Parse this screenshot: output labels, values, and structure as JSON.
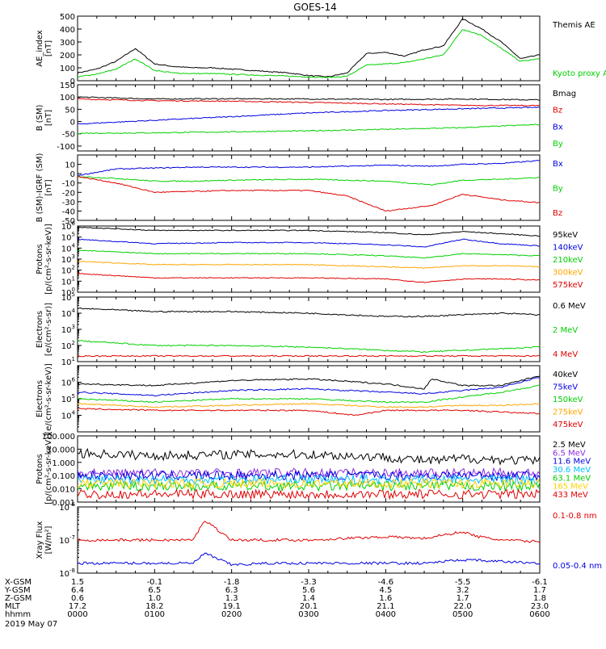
{
  "title": "GOES-14",
  "chart_data": [
    {
      "type": "line",
      "ylabel_lines": [
        "AE_index",
        "[nT]"
      ],
      "ylim": [
        0,
        500
      ],
      "yticks": [
        "0",
        "100",
        "200",
        "300",
        "400",
        "500"
      ],
      "series": [
        {
          "name": "Themis AE",
          "color": "#000000",
          "x": [
            0,
            0.25,
            0.5,
            0.75,
            1.0,
            1.25,
            1.5,
            1.75,
            2.0,
            2.25,
            2.5,
            2.75,
            3.0,
            3.25,
            3.5,
            3.75,
            4.0,
            4.25,
            4.5,
            4.75,
            5.0,
            5.25,
            5.5,
            5.75,
            6.0
          ],
          "values": [
            60,
            90,
            150,
            250,
            130,
            110,
            100,
            100,
            90,
            80,
            70,
            60,
            40,
            30,
            60,
            210,
            220,
            190,
            240,
            270,
            480,
            400,
            300,
            170,
            200
          ]
        },
        {
          "name": "Kyoto proxy AE",
          "color": "#00d000",
          "x": [
            0,
            0.25,
            0.5,
            0.75,
            1.0,
            1.25,
            1.5,
            1.75,
            2.0,
            2.25,
            2.5,
            2.75,
            3.0,
            3.25,
            3.5,
            3.75,
            4.0,
            4.25,
            4.5,
            4.75,
            5.0,
            5.25,
            5.5,
            5.75,
            6.0
          ],
          "values": [
            30,
            50,
            90,
            170,
            80,
            60,
            55,
            55,
            50,
            45,
            40,
            35,
            30,
            25,
            35,
            120,
            130,
            140,
            170,
            200,
            400,
            350,
            250,
            150,
            170
          ]
        }
      ]
    },
    {
      "type": "line",
      "ylabel_lines": [
        "B (SM)",
        "[nT]"
      ],
      "ylim": [
        -120,
        150
      ],
      "yticks": [
        "-100",
        "-50",
        "0",
        "50",
        "100",
        "150"
      ],
      "series": [
        {
          "name": "Bmag",
          "color": "#000000",
          "x": [
            0,
            1,
            2,
            3,
            4,
            5,
            6
          ],
          "values": [
            100,
            92,
            93,
            92,
            90,
            92,
            88
          ]
        },
        {
          "name": "Bz",
          "color": "#e00000",
          "x": [
            0,
            1,
            2,
            3,
            4,
            5,
            6
          ],
          "values": [
            92,
            85,
            83,
            78,
            72,
            66,
            65
          ]
        },
        {
          "name": "Bx",
          "color": "#0000e0",
          "x": [
            0,
            1,
            2,
            3,
            4,
            5,
            6
          ],
          "values": [
            -10,
            5,
            20,
            35,
            45,
            52,
            58
          ]
        },
        {
          "name": "By",
          "color": "#00d000",
          "x": [
            0,
            1,
            2,
            3,
            4,
            5,
            6
          ],
          "values": [
            -48,
            -46,
            -42,
            -38,
            -32,
            -25,
            -12
          ]
        }
      ]
    },
    {
      "type": "line",
      "ylabel_lines": [
        "B (SM)-IGRF (SM)",
        "[nT]"
      ],
      "ylim": [
        -50,
        20
      ],
      "yticks": [
        "-50",
        "-40",
        "-30",
        "-20",
        "-10",
        "0",
        "10"
      ],
      "series": [
        {
          "name": "Bx",
          "color": "#0000e0",
          "x": [
            0,
            0.5,
            1.0,
            1.5,
            2.0,
            3.0,
            4.0,
            4.6,
            5.0,
            5.5,
            6.0
          ],
          "values": [
            -2,
            5,
            6,
            7,
            7,
            7,
            9,
            8,
            10,
            11,
            14
          ]
        },
        {
          "name": "By",
          "color": "#00d000",
          "x": [
            0,
            0.5,
            1.0,
            1.5,
            2.0,
            3.0,
            4.0,
            4.6,
            5.0,
            5.5,
            6.0
          ],
          "values": [
            -3,
            -5,
            -8,
            -8,
            -7,
            -6,
            -8,
            -12,
            -7,
            -6,
            -4
          ]
        },
        {
          "name": "Bz",
          "color": "#e00000",
          "x": [
            0,
            0.5,
            1.0,
            1.5,
            2.0,
            3.0,
            3.5,
            4.0,
            4.6,
            5.0,
            5.5,
            6.0
          ],
          "values": [
            -3,
            -10,
            -20,
            -19,
            -18,
            -18,
            -24,
            -40,
            -34,
            -22,
            -28,
            -31
          ]
        }
      ]
    },
    {
      "type": "line",
      "log": true,
      "ylabel_lines": [
        "Protons",
        "[p/(cm²-s-sr-keV)]"
      ],
      "ylim_exp": [
        0,
        6
      ],
      "yticks_exp": [
        0,
        1,
        2,
        3,
        4,
        5,
        6
      ],
      "series": [
        {
          "name": "95keV",
          "color": "#000000",
          "x": [
            0,
            1,
            2,
            3,
            4,
            4.5,
            5,
            5.5,
            6
          ],
          "values_exp": [
            5.9,
            5.6,
            5.6,
            5.6,
            5.4,
            5.2,
            5.5,
            5.3,
            5.1
          ]
        },
        {
          "name": "140keV",
          "color": "#0000e0",
          "x": [
            0,
            1,
            2,
            3,
            4,
            4.5,
            5,
            5.5,
            6
          ],
          "values_exp": [
            4.8,
            4.4,
            4.5,
            4.5,
            4.3,
            4.1,
            4.8,
            4.4,
            4.2
          ]
        },
        {
          "name": "210keV",
          "color": "#00d000",
          "x": [
            0,
            1,
            2,
            3,
            4,
            4.5,
            5,
            5.5,
            6
          ],
          "values_exp": [
            3.8,
            3.5,
            3.5,
            3.5,
            3.3,
            3.1,
            3.5,
            3.4,
            3.3
          ]
        },
        {
          "name": "300keV",
          "color": "#ffa500",
          "x": [
            0,
            1,
            2,
            3,
            4,
            4.5,
            5,
            5.5,
            6
          ],
          "values_exp": [
            2.8,
            2.5,
            2.5,
            2.5,
            2.3,
            2.2,
            2.4,
            2.4,
            2.3
          ]
        },
        {
          "name": "575keV",
          "color": "#e00000",
          "x": [
            0,
            1,
            2,
            3,
            4,
            4.5,
            5,
            5.5,
            6
          ],
          "values_exp": [
            1.7,
            1.3,
            1.3,
            1.3,
            1.2,
            0.9,
            1.2,
            1.2,
            1.1
          ]
        }
      ]
    },
    {
      "type": "line",
      "log": true,
      "ylabel_lines": [
        "Electrons",
        "[e/(cm²-s-sr)]"
      ],
      "ylim_exp": [
        1,
        5
      ],
      "yticks_exp": [
        1,
        2,
        3,
        4,
        5
      ],
      "series": [
        {
          "name": "0.6 MeV",
          "color": "#000000",
          "x": [
            0,
            1,
            2,
            3,
            4,
            4.5,
            5,
            5.5,
            6
          ],
          "values_exp": [
            4.3,
            4.1,
            4.1,
            4.0,
            3.8,
            3.8,
            3.9,
            4.0,
            3.9
          ]
        },
        {
          "name": "2 MeV",
          "color": "#00d000",
          "x": [
            0,
            1,
            2,
            3,
            4,
            4.5,
            5,
            5.5,
            6
          ],
          "values_exp": [
            2.3,
            2.0,
            2.0,
            1.9,
            1.7,
            1.6,
            1.7,
            1.8,
            1.9
          ]
        },
        {
          "name": "4 MeV",
          "color": "#e00000",
          "x": [
            0,
            1,
            2,
            3,
            4,
            4.5,
            5,
            5.5,
            6
          ],
          "values_exp": [
            1.35,
            1.35,
            1.35,
            1.35,
            1.35,
            1.35,
            1.35,
            1.35,
            1.35
          ]
        }
      ]
    },
    {
      "type": "line",
      "log": true,
      "ylabel_lines": [
        "Electrons",
        "[e/(cm²-s-sr-keV)]"
      ],
      "ylim_exp": [
        3,
        7
      ],
      "yticks_exp": [
        4,
        5,
        6
      ],
      "series": [
        {
          "name": "40keV",
          "color": "#000000",
          "x": [
            0,
            1,
            2,
            3,
            4,
            4.5,
            4.6,
            5,
            5.5,
            6
          ],
          "values_exp": [
            5.9,
            5.8,
            6.1,
            6.2,
            5.9,
            5.6,
            6.2,
            5.8,
            5.8,
            6.4
          ]
        },
        {
          "name": "75keV",
          "color": "#0000e0",
          "x": [
            0,
            1,
            2,
            3,
            4,
            4.5,
            5,
            5.5,
            6
          ],
          "values_exp": [
            5.4,
            5.2,
            5.5,
            5.6,
            5.4,
            5.3,
            5.5,
            5.7,
            6.3
          ]
        },
        {
          "name": "150keV",
          "color": "#00d000",
          "x": [
            0,
            1,
            2,
            3,
            4,
            4.5,
            5,
            5.5,
            6
          ],
          "values_exp": [
            5.0,
            4.8,
            5.0,
            5.0,
            4.8,
            4.8,
            5.1,
            5.4,
            5.8
          ]
        },
        {
          "name": "275keV",
          "color": "#ffa500",
          "x": [
            0,
            1,
            2,
            3,
            4,
            4.5,
            5,
            5.5,
            6
          ],
          "values_exp": [
            4.7,
            4.5,
            4.6,
            4.7,
            4.5,
            4.5,
            4.6,
            4.6,
            4.7
          ]
        },
        {
          "name": "475keV",
          "color": "#e00000",
          "x": [
            0,
            1,
            2,
            3,
            3.6,
            4,
            4.5,
            5,
            5.5,
            6
          ],
          "values_exp": [
            4.4,
            4.3,
            4.3,
            4.3,
            4.0,
            4.3,
            4.3,
            4.3,
            4.2,
            4.1
          ]
        }
      ]
    },
    {
      "type": "line",
      "log": true,
      "ylabel_lines": [
        "Protons",
        "[p/(cm²-s-sr-keV)]"
      ],
      "ylim_exp": [
        -3,
        2
      ],
      "ytick_labels": [
        "0.001",
        "0.010",
        "0.100",
        "1.000",
        "10.000",
        "100.000"
      ],
      "series": [
        {
          "name": "2.5 MeV",
          "color": "#000000",
          "x": [
            0,
            1,
            2,
            3,
            4,
            4.6,
            5,
            6
          ],
          "values_exp": [
            0.7,
            0.5,
            0.6,
            0.6,
            0.4,
            0.1,
            0.3,
            0.1
          ]
        },
        {
          "name": "6.5 MeV",
          "color": "#8a2be2",
          "x": [
            0,
            6
          ],
          "values_exp": [
            -0.8,
            -0.8
          ]
        },
        {
          "name": "11.6 MeV",
          "color": "#0000e0",
          "x": [
            0,
            6
          ],
          "values_exp": [
            -1.0,
            -1.0
          ]
        },
        {
          "name": "30.6 MeV",
          "color": "#00c0ff",
          "x": [
            0,
            6
          ],
          "values_exp": [
            -1.3,
            -1.3
          ]
        },
        {
          "name": "63.1 MeV",
          "color": "#00d000",
          "x": [
            0,
            6
          ],
          "values_exp": [
            -1.8,
            -1.8
          ]
        },
        {
          "name": "165 MeV",
          "color": "#ffd000",
          "x": [
            0,
            6
          ],
          "values_exp": [
            -1.6,
            -1.6
          ]
        },
        {
          "name": "433 MeV",
          "color": "#e00000",
          "x": [
            0,
            6
          ],
          "values_exp": [
            -2.4,
            -2.4
          ]
        }
      ]
    },
    {
      "type": "line",
      "log": true,
      "ylabel_lines": [
        "Xray Flux",
        "[W/m²]"
      ],
      "ylim_exp": [
        -8,
        -6
      ],
      "yticks_exp": [
        -8,
        -7,
        -6
      ],
      "series": [
        {
          "name": "0.1-0.8 nm",
          "color": "#e00000",
          "x": [
            0,
            0.5,
            1,
            1.5,
            1.65,
            2,
            2.5,
            3,
            3.5,
            4,
            4.5,
            5,
            5.2,
            5.5,
            6
          ],
          "values_exp": [
            -7.0,
            -7.0,
            -7.0,
            -7.0,
            -6.4,
            -7.0,
            -7.0,
            -7.0,
            -6.95,
            -6.9,
            -6.95,
            -6.75,
            -6.9,
            -7.0,
            -7.05
          ]
        },
        {
          "name": "0.05-0.4 nm",
          "color": "#0000e0",
          "x": [
            0,
            0.5,
            1,
            1.5,
            1.65,
            2,
            2.5,
            3,
            3.5,
            4,
            4.5,
            5,
            6
          ],
          "values_exp": [
            -7.7,
            -7.7,
            -7.7,
            -7.7,
            -7.4,
            -7.75,
            -7.7,
            -7.7,
            -7.7,
            -7.7,
            -7.7,
            -7.6,
            -7.7
          ]
        }
      ]
    }
  ],
  "footer": {
    "rows": [
      {
        "label": "X-GSM",
        "values": [
          "1.5",
          "-0.1",
          "-1.8",
          "-3.3",
          "-4.6",
          "-5.5",
          "-6.1"
        ]
      },
      {
        "label": "Y-GSM",
        "values": [
          "6.4",
          "6.5",
          "6.3",
          "5.6",
          "4.5",
          "3.2",
          "1.7"
        ]
      },
      {
        "label": "Z-GSM",
        "values": [
          "0.6",
          "1.0",
          "1.3",
          "1.4",
          "1.6",
          "1.7",
          "1.8"
        ]
      },
      {
        "label": "MLT",
        "values": [
          "17.2",
          "18.2",
          "19.1",
          "20.1",
          "21.1",
          "22.0",
          "23.0"
        ]
      },
      {
        "label": "hhmm",
        "values": [
          "0000",
          "0100",
          "0200",
          "0300",
          "0400",
          "0500",
          "0600"
        ]
      }
    ],
    "date": "2019 May 07"
  }
}
